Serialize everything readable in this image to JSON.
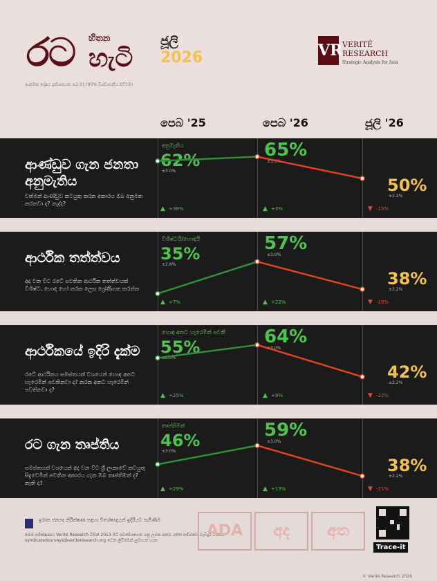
{
  "brand": {
    "title_a": "රට",
    "title_b": "හිතන",
    "title_c": "හැටි",
    "edition_month": "ජූලි",
    "edition_year": "2026",
    "subnote": "ආන්තික දෝෂය ප්‍රතිශතයක ±2.21 (95% විශ්වාසනීය මට්ටම)",
    "org_letters": "VR",
    "org_line1": "VERITÉ",
    "org_line2": "RESEARCH",
    "org_tag": "Strategic Analysis for Asia"
  },
  "columns": [
    "පෙබ '25",
    "පෙබ '26",
    "ජූලි '26"
  ],
  "panels": [
    {
      "title": "ආණ්ඩුව ගැන ජනතා අනුමැතිය",
      "desc": "වත්මන් ආණ්ඩුව කටයුතු කරන අකාරය ඔබ අනුමත කරනවා ද? නැද්ද?",
      "label": "අනුමැතිය",
      "v1": "62%",
      "e1": "±3.0%",
      "c1": "+38%",
      "v2": "65%",
      "e2": "±3.0%",
      "c2": "+3%",
      "v3": "50%",
      "e3": "±2.2%",
      "c3": "-15%"
    },
    {
      "title": "ආර්ථික තත්ත්වය",
      "desc": "අද වන විට රටේ පවතින ආර්ථික තත්ත්වයක් විශිෂ්ට, හොඳ හෝ නරක ලෙස ශ්‍රේණිගත කරන්න",
      "label": "විශිෂ්ටයි/හොඳයි",
      "v1": "35%",
      "e1": "±2.8%",
      "c1": "+7%",
      "v2": "57%",
      "e2": "±3.0%",
      "c2": "+22%",
      "v3": "38%",
      "e3": "±2.2%",
      "c3": "-19%"
    },
    {
      "title": "ආර්ථිකයේ ඉදිරි දැක්ම",
      "desc": "රටේ ආර්ථිකය සමස්තයක් වශයෙන් හොඳ අතට හැරෙමින් පවතිනවා ද? නරක අතට හැරෙමින් පවතිනවා ද?",
      "label": "හොඳ අතට හැරෙමින් පවතී",
      "v1": "55%",
      "e1": "±3.0%",
      "c1": "+25%",
      "v2": "64%",
      "e2": "±3.0%",
      "c2": "+9%",
      "v3": "42%",
      "e3": "±2.2%",
      "c3": "-22%"
    },
    {
      "title": "රට ගැන තෘප්තිය",
      "desc": "සමස්තයක් වශයෙන් අද වන විට ශ්‍රී ලංකාවේ කටයුතු සිදුවෙමින් පවතින අකාරය ගැන ඔබ තෘප්තිමත් ද? නැති ද?",
      "label": "තෘප්තිමත්",
      "v1": "46%",
      "e1": "±3.0%",
      "c1": "+29%",
      "v2": "59%",
      "e2": "±3.0%",
      "c2": "+13%",
      "v3": "38%",
      "e3": "±2.2%",
      "c3": "-21%"
    }
  ],
  "chart_data": [
    {
      "type": "line",
      "title": "ආණ්ඩුව ගැන ජනතා අනුමැතිය",
      "categories": [
        "පෙබ '25",
        "පෙබ '26",
        "ජූලි '26"
      ],
      "series": [
        {
          "name": "අනුමැතිය",
          "values": [
            62,
            65,
            50
          ]
        }
      ]
    },
    {
      "type": "line",
      "title": "ආර්ථික තත්ත්වය",
      "categories": [
        "පෙබ '25",
        "පෙබ '26",
        "ජූලි '26"
      ],
      "series": [
        {
          "name": "විශිෂ්ටයි/හොඳයි",
          "values": [
            35,
            57,
            38
          ]
        }
      ]
    },
    {
      "type": "line",
      "title": "ආර්ථිකයේ ඉදිරි දැක්ම",
      "categories": [
        "පෙබ '25",
        "පෙබ '26",
        "ජූලි '26"
      ],
      "series": [
        {
          "name": "හොඳ අතට හැරෙමින් පවතී",
          "values": [
            55,
            64,
            42
          ]
        }
      ]
    },
    {
      "type": "line",
      "title": "රට ගැන තෘප්තිය",
      "categories": [
        "පෙබ '25",
        "පෙබ '26",
        "ජූලි '26"
      ],
      "series": [
        {
          "name": "තෘප්තිමත්",
          "values": [
            46,
            59,
            38
          ]
        }
      ]
    }
  ],
  "footer": {
    "credit": "ඉරාන ජනපද නිරීක්ෂණ සඳහා විශේෂඥයන් ඉදිරියට පැමිණීම",
    "note": "මෙම සමීක්ෂණය Verité Research විසින් 2013 සිට පවත්වාගෙන යනු ලබන අතර, දත්ත සම්බන්ධ වැඩිදුර විස්තර syndicatedsurveys@veriteresearch.org වෙත ලිවීමෙන් ලබාගත හැක.",
    "media": [
      "ADA",
      "අද",
      "අත"
    ],
    "trace": "Trace-it",
    "copyright": "© Verité Research 2026"
  },
  "colors": {
    "up": "#2f8f3a",
    "down": "#e0431f",
    "brand": "#5a0d12",
    "accent_green": "#4fc24f",
    "accent_yellow": "#f2c14e"
  }
}
